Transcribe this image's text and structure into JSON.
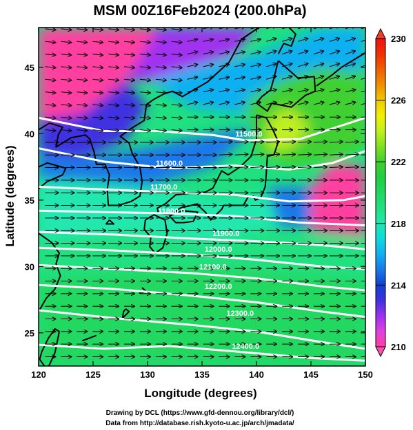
{
  "title": "MSM 00Z16Feb2024 (200.0hPa)",
  "xlabel": "Longitude (degrees)",
  "ylabel": "Latitude  (degrees)",
  "credits": [
    "Drawing by DCL (https://www.gfd-dennou.org/library/dcl/)",
    "Data from http://database.rish.kyoto-u.ac.jp/arch/jmadata/"
  ],
  "colors": {
    "coast": "#000000",
    "contour": "#ffffff",
    "vector": "#000000"
  },
  "chart_data": {
    "type": "heatmap",
    "description_variable": "temperature (K) shaded, geopotential height (m) contours, wind vectors",
    "xlim": [
      120,
      150
    ],
    "ylim": [
      22.5,
      48
    ],
    "xticks": [
      120,
      125,
      130,
      135,
      140,
      145,
      150
    ],
    "yticks": [
      25,
      30,
      35,
      40,
      45
    ],
    "colorbar": {
      "min": 210,
      "max": 230,
      "ticks": [
        210,
        214,
        218,
        222,
        226,
        230
      ],
      "stops": [
        {
          "value": 210,
          "color": "#ff3fa0"
        },
        {
          "value": 211,
          "color": "#e040e0"
        },
        {
          "value": 212,
          "color": "#a030f0"
        },
        {
          "value": 213,
          "color": "#4030e0"
        },
        {
          "value": 214,
          "color": "#1040d0"
        },
        {
          "value": 215,
          "color": "#1a78e8"
        },
        {
          "value": 216,
          "color": "#10b0f0"
        },
        {
          "value": 217,
          "color": "#10d8e0"
        },
        {
          "value": 218,
          "color": "#20e8b0"
        },
        {
          "value": 219,
          "color": "#20e080"
        },
        {
          "value": 220,
          "color": "#20d860"
        },
        {
          "value": 221,
          "color": "#20d040"
        },
        {
          "value": 222,
          "color": "#40d030"
        },
        {
          "value": 223,
          "color": "#80e020"
        },
        {
          "value": 224,
          "color": "#c0f020"
        },
        {
          "value": 225,
          "color": "#f0f000"
        },
        {
          "value": 226,
          "color": "#f0c800"
        },
        {
          "value": 227,
          "color": "#f09000"
        },
        {
          "value": 228,
          "color": "#f06000"
        },
        {
          "value": 229,
          "color": "#f03000"
        },
        {
          "value": 230,
          "color": "#f01010"
        }
      ]
    },
    "contour_labels": [
      {
        "text": "11500.0",
        "lon": 139.3,
        "lat": 40.0
      },
      {
        "text": "11600.0",
        "lon": 132.0,
        "lat": 37.8
      },
      {
        "text": "11700.0",
        "lon": 131.5,
        "lat": 36.0
      },
      {
        "text": "11800.0",
        "lon": 132.2,
        "lat": 34.2
      },
      {
        "text": "11900.0",
        "lon": 137.2,
        "lat": 32.5
      },
      {
        "text": "12000.0",
        "lon": 136.5,
        "lat": 31.3
      },
      {
        "text": "12100.0",
        "lon": 136.0,
        "lat": 30.0
      },
      {
        "text": "12200.0",
        "lon": 136.5,
        "lat": 28.5
      },
      {
        "text": "12300.0",
        "lon": 138.5,
        "lat": 26.5
      },
      {
        "text": "12400.0",
        "lon": 139.0,
        "lat": 24.0
      }
    ]
  }
}
